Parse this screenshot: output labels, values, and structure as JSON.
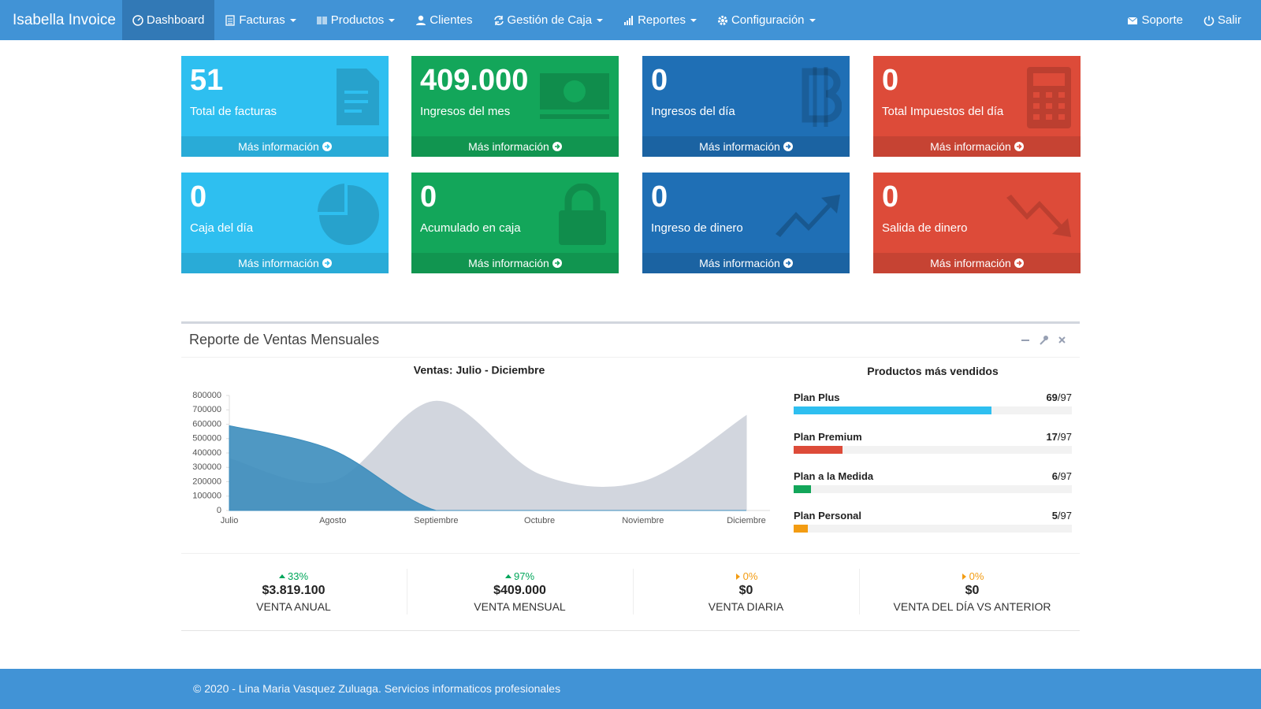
{
  "navbar": {
    "brand": "Isabella Invoice",
    "items": [
      "Dashboard",
      "Facturas",
      "Productos",
      "Clientes",
      "Gestión de Caja",
      "Reportes",
      "Configuración"
    ],
    "right_items": [
      "Soporte",
      "Salir"
    ]
  },
  "info_boxes": [
    {
      "value": "51",
      "label": "Total de facturas",
      "link": "Más información",
      "color": "#2ebff0"
    },
    {
      "value": "409.000",
      "label": "Ingresos del mes",
      "link": "Más información",
      "color": "#13a65a"
    },
    {
      "value": "0",
      "label": "Ingresos del día",
      "link": "Más información",
      "color": "#1f6fb5"
    },
    {
      "value": "0",
      "label": "Total Impuestos del día",
      "link": "Más información",
      "color": "#dd4b39"
    },
    {
      "value": "0",
      "label": "Caja del día",
      "link": "Más información",
      "color": "#2ebff0"
    },
    {
      "value": "0",
      "label": "Acumulado en caja",
      "link": "Más información",
      "color": "#13a65a"
    },
    {
      "value": "0",
      "label": "Ingreso de dinero",
      "link": "Más información",
      "color": "#1f6fb5"
    },
    {
      "value": "0",
      "label": "Salida de dinero",
      "link": "Más información",
      "color": "#dd4b39"
    }
  ],
  "panel": {
    "title": "Reporte de Ventas Mensuales"
  },
  "chart_data": {
    "type": "area",
    "title": "Ventas: Julio - Diciembre",
    "categories": [
      "Julio",
      "Agosto",
      "Septiembre",
      "Octubre",
      "Noviembre",
      "Diciembre"
    ],
    "series": [
      {
        "color": "#d2d6de",
        "values": [
          360000,
          200000,
          760000,
          250000,
          200000,
          660000
        ]
      },
      {
        "color": "#3c8dbc",
        "values": [
          590000,
          420000,
          0,
          0,
          0,
          0
        ]
      }
    ],
    "ylim": [
      0,
      800000
    ],
    "yticks": [
      0,
      100000,
      200000,
      300000,
      400000,
      500000,
      600000,
      700000,
      800000
    ],
    "grid": false
  },
  "top_products": {
    "title": "Productos más vendidos",
    "items": [
      {
        "name": "Plan Plus",
        "value": 69,
        "total": {
          "value": 97,
          "label": "/97"
        },
        "color": "#2ebff0"
      },
      {
        "name": "Plan Premium",
        "value": 17,
        "total": {
          "value": 97,
          "label": "/97"
        },
        "color": "#dd4b39"
      },
      {
        "name": "Plan a la Medida",
        "value": 6,
        "total": {
          "value": 97,
          "label": "/97"
        },
        "color": "#13a65a"
      },
      {
        "name": "Plan Personal",
        "value": 5,
        "total": {
          "value": 97,
          "label": "/97"
        },
        "color": "#f39c12"
      }
    ]
  },
  "stats": [
    {
      "change": "33%",
      "amount": "$3.819.100",
      "label": "VENTA ANUAL",
      "trend": "up"
    },
    {
      "change": "97%",
      "amount": "$409.000",
      "label": "VENTA MENSUAL",
      "trend": "up"
    },
    {
      "change": "0%",
      "amount": "$0",
      "label": "VENTA DIARIA",
      "trend": "flat"
    },
    {
      "change": "0%",
      "amount": "$0",
      "label": "VENTA DEL DÍA VS ANTERIOR",
      "trend": "flat"
    }
  ],
  "footer": {
    "text": "© 2020 - Lina Maria Vasquez Zuluaga. Servicios informaticos profesionales"
  }
}
